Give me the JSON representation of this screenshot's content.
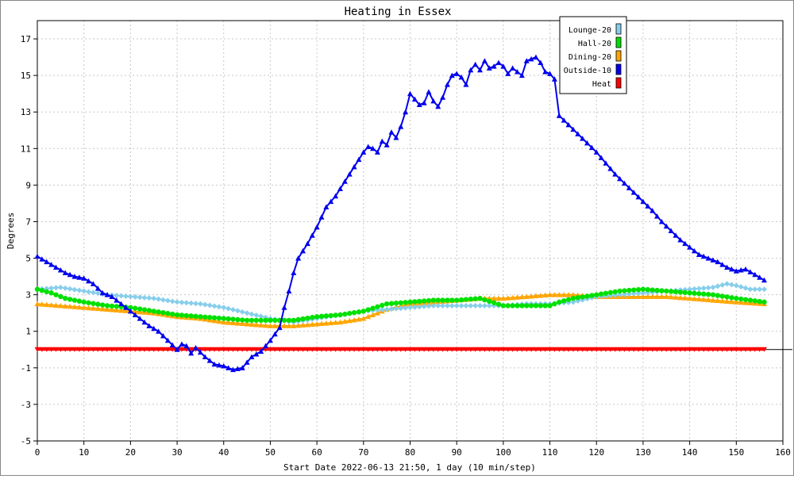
{
  "chart_data": {
    "type": "line",
    "title": "Heating in Essex",
    "xlabel": "Start Date 2022-06-13 21:50, 1 day (10 min/step)",
    "ylabel": "Degrees",
    "xlim": [
      0,
      160
    ],
    "ylim": [
      -5,
      18
    ],
    "xticks": [
      0,
      10,
      20,
      30,
      40,
      50,
      60,
      70,
      80,
      90,
      100,
      110,
      120,
      130,
      140,
      150,
      160
    ],
    "yticks": [
      -5,
      -3,
      -1,
      1,
      3,
      5,
      7,
      9,
      11,
      13,
      15,
      17
    ],
    "grid": true,
    "legend_position": "top-right",
    "series": [
      {
        "name": "Lounge-20",
        "color": "#87ceeb",
        "marker": "diamond",
        "x": [
          0,
          5,
          10,
          15,
          20,
          25,
          30,
          35,
          40,
          45,
          50,
          55,
          60,
          65,
          70,
          75,
          80,
          85,
          90,
          95,
          100,
          105,
          110,
          115,
          120,
          125,
          130,
          135,
          140,
          145,
          148,
          150,
          153,
          156
        ],
        "values": [
          3.3,
          3.4,
          3.2,
          3.0,
          2.9,
          2.8,
          2.6,
          2.5,
          2.3,
          2.0,
          1.7,
          1.5,
          1.7,
          1.9,
          2.1,
          2.2,
          2.3,
          2.4,
          2.4,
          2.4,
          2.4,
          2.5,
          2.5,
          2.6,
          2.9,
          3.0,
          3.1,
          3.2,
          3.3,
          3.4,
          3.6,
          3.5,
          3.3,
          3.3
        ]
      },
      {
        "name": "Hall-20",
        "color": "#00e000",
        "marker": "circle",
        "x": [
          0,
          3,
          6,
          10,
          15,
          20,
          25,
          30,
          35,
          40,
          45,
          50,
          55,
          60,
          65,
          70,
          75,
          80,
          85,
          90,
          95,
          100,
          105,
          110,
          112,
          115,
          120,
          125,
          130,
          135,
          140,
          145,
          150,
          156
        ],
        "values": [
          3.3,
          3.1,
          2.8,
          2.6,
          2.4,
          2.3,
          2.1,
          1.9,
          1.8,
          1.7,
          1.6,
          1.6,
          1.6,
          1.8,
          1.9,
          2.1,
          2.5,
          2.6,
          2.7,
          2.7,
          2.8,
          2.4,
          2.4,
          2.4,
          2.6,
          2.8,
          3.0,
          3.2,
          3.3,
          3.2,
          3.1,
          3.0,
          2.8,
          2.6
        ]
      },
      {
        "name": "Dining-20",
        "color": "#ffa500",
        "marker": "triangle",
        "x": [
          0,
          5,
          10,
          15,
          20,
          25,
          30,
          35,
          40,
          45,
          50,
          55,
          60,
          65,
          70,
          75,
          80,
          85,
          90,
          95,
          100,
          105,
          110,
          115,
          120,
          125,
          130,
          135,
          140,
          145,
          150,
          156
        ],
        "values": [
          2.5,
          2.4,
          2.3,
          2.2,
          2.1,
          2.0,
          1.8,
          1.7,
          1.5,
          1.4,
          1.3,
          1.3,
          1.4,
          1.5,
          1.7,
          2.2,
          2.5,
          2.6,
          2.7,
          2.8,
          2.8,
          2.9,
          3.0,
          3.0,
          2.9,
          2.9,
          2.9,
          2.9,
          2.8,
          2.7,
          2.6,
          2.5
        ]
      },
      {
        "name": "Outside-10",
        "color": "#0000ee",
        "marker": "triangle",
        "x": [
          0,
          2,
          4,
          6,
          8,
          10,
          12,
          14,
          16,
          18,
          20,
          22,
          24,
          26,
          28,
          30,
          31,
          32,
          33,
          34,
          36,
          38,
          40,
          42,
          44,
          46,
          48,
          50,
          52,
          53,
          54,
          55,
          56,
          57,
          58,
          60,
          62,
          64,
          66,
          68,
          70,
          71,
          72,
          73,
          74,
          75,
          76,
          77,
          78,
          79,
          80,
          81,
          82,
          83,
          84,
          85,
          86,
          87,
          88,
          89,
          90,
          91,
          92,
          93,
          94,
          95,
          96,
          97,
          98,
          99,
          100,
          101,
          102,
          103,
          104,
          105,
          106,
          107,
          108,
          109,
          110,
          111,
          112,
          114,
          116,
          118,
          120,
          122,
          124,
          126,
          128,
          130,
          132,
          134,
          136,
          138,
          140,
          142,
          144,
          146,
          148,
          150,
          152,
          154,
          156
        ],
        "values": [
          5.1,
          4.8,
          4.5,
          4.2,
          4.0,
          3.9,
          3.6,
          3.1,
          2.9,
          2.5,
          2.1,
          1.7,
          1.3,
          1.0,
          0.5,
          0.0,
          0.3,
          0.2,
          -0.2,
          0.1,
          -0.4,
          -0.8,
          -0.9,
          -1.1,
          -1.0,
          -0.4,
          -0.1,
          0.5,
          1.2,
          2.3,
          3.2,
          4.2,
          5.0,
          5.4,
          5.8,
          6.7,
          7.8,
          8.4,
          9.2,
          10.0,
          10.8,
          11.1,
          11.0,
          10.8,
          11.4,
          11.2,
          11.9,
          11.6,
          12.2,
          13.0,
          14.0,
          13.7,
          13.4,
          13.5,
          14.1,
          13.6,
          13.3,
          13.8,
          14.5,
          15.0,
          15.1,
          14.9,
          14.5,
          15.3,
          15.6,
          15.3,
          15.8,
          15.4,
          15.5,
          15.7,
          15.5,
          15.1,
          15.4,
          15.2,
          15.0,
          15.8,
          15.9,
          16.0,
          15.7,
          15.2,
          15.1,
          14.8,
          12.8,
          12.3,
          11.8,
          11.3,
          10.8,
          10.2,
          9.6,
          9.1,
          8.6,
          8.1,
          7.6,
          7.0,
          6.5,
          6.0,
          5.6,
          5.2,
          5.0,
          4.8,
          4.5,
          4.3,
          4.4,
          4.1,
          3.8
        ]
      },
      {
        "name": "Heat",
        "color": "#ff0000",
        "marker": "triangle-down",
        "x": [
          0,
          156
        ],
        "values": [
          0,
          0
        ]
      }
    ]
  }
}
